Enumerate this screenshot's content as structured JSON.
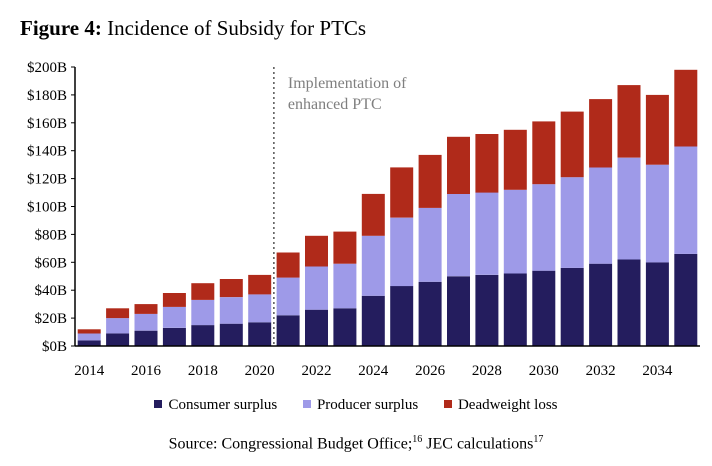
{
  "figure": {
    "label": "Figure 4:",
    "title": "Incidence of Subsidy for PTCs",
    "source_text": "Source: Congressional Budget Office;",
    "source_ref1": "16",
    "source_mid": " JEC calculations",
    "source_ref2": "17"
  },
  "chart_data": {
    "type": "bar",
    "stacked": true,
    "title": "Incidence of Subsidy for PTCs",
    "xlabel": "",
    "ylabel": "",
    "ylim": [
      0,
      200
    ],
    "y_ticks": [
      "$0B",
      "$20B",
      "$40B",
      "$60B",
      "$80B",
      "$100B",
      "$120B",
      "$140B",
      "$160B",
      "$180B",
      "$200B"
    ],
    "x_tick_labels": [
      "2014",
      "2016",
      "2018",
      "2020",
      "2022",
      "2024",
      "2026",
      "2028",
      "2030",
      "2032",
      "2034"
    ],
    "categories": [
      "2014",
      "2015",
      "2016",
      "2017",
      "2018",
      "2019",
      "2020",
      "2021",
      "2022",
      "2023",
      "2024",
      "2025",
      "2026",
      "2027",
      "2028",
      "2029",
      "2030",
      "2031",
      "2032",
      "2033",
      "2034",
      "2035"
    ],
    "series": [
      {
        "name": "Consumer surplus",
        "color": "#241d5e",
        "values": [
          4,
          9,
          11,
          13,
          15,
          16,
          17,
          22,
          26,
          27,
          36,
          43,
          46,
          50,
          51,
          52,
          54,
          56,
          59,
          62,
          60,
          66
        ]
      },
      {
        "name": "Producer surplus",
        "color": "#9e9ae8",
        "values": [
          5,
          11,
          12,
          15,
          18,
          19,
          20,
          27,
          31,
          32,
          43,
          49,
          53,
          59,
          59,
          60,
          62,
          65,
          69,
          73,
          70,
          77
        ]
      },
      {
        "name": "Deadweight loss",
        "color": "#b02a1a",
        "values": [
          3,
          7,
          7,
          10,
          12,
          13,
          14,
          18,
          22,
          23,
          30,
          36,
          38,
          41,
          42,
          43,
          45,
          47,
          49,
          52,
          50,
          55
        ]
      }
    ],
    "annotation": {
      "text_line1": "Implementation of",
      "text_line2": "enhanced PTC",
      "x_between": [
        "2020",
        "2021"
      ]
    },
    "legend_position": "bottom",
    "grid": false
  }
}
